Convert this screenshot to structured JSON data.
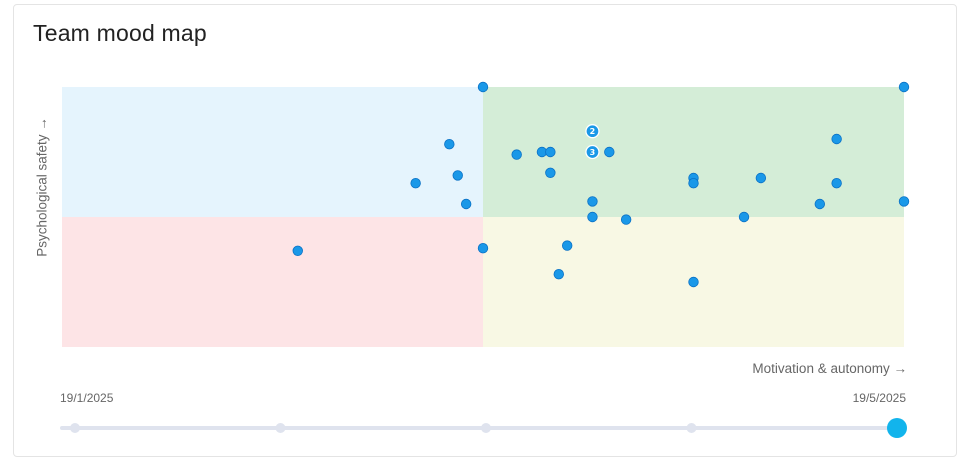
{
  "title": "Team mood map",
  "chart_data": {
    "type": "scatter",
    "xlabel": "Motivation & autonomy →",
    "ylabel": "Psychological safety →",
    "xlim": [
      0,
      1
    ],
    "ylim": [
      0,
      1
    ],
    "quadrant_split": [
      0.5,
      0.5
    ],
    "quadrant_colors": {
      "top_left": "#e5f4fd",
      "top_right": "#d4edd7",
      "bottom_left": "#fde4e6",
      "bottom_right": "#f8f8e4"
    },
    "point_color": "#1a98e8",
    "points": [
      {
        "x": 0.5,
        "y": 1.0
      },
      {
        "x": 1.0,
        "y": 1.0
      },
      {
        "x": 0.63,
        "y": 0.83,
        "count": 2
      },
      {
        "x": 0.63,
        "y": 0.75,
        "count": 3
      },
      {
        "x": 0.46,
        "y": 0.78
      },
      {
        "x": 0.54,
        "y": 0.74
      },
      {
        "x": 0.57,
        "y": 0.75
      },
      {
        "x": 0.58,
        "y": 0.75
      },
      {
        "x": 0.65,
        "y": 0.75
      },
      {
        "x": 0.92,
        "y": 0.8
      },
      {
        "x": 0.42,
        "y": 0.63
      },
      {
        "x": 0.47,
        "y": 0.66
      },
      {
        "x": 0.58,
        "y": 0.67
      },
      {
        "x": 0.75,
        "y": 0.65
      },
      {
        "x": 0.75,
        "y": 0.63
      },
      {
        "x": 0.83,
        "y": 0.65
      },
      {
        "x": 0.92,
        "y": 0.63
      },
      {
        "x": 0.48,
        "y": 0.55
      },
      {
        "x": 0.63,
        "y": 0.56
      },
      {
        "x": 0.63,
        "y": 0.5
      },
      {
        "x": 0.67,
        "y": 0.49
      },
      {
        "x": 0.81,
        "y": 0.5
      },
      {
        "x": 0.9,
        "y": 0.55
      },
      {
        "x": 1.0,
        "y": 0.56
      },
      {
        "x": 0.28,
        "y": 0.37
      },
      {
        "x": 0.5,
        "y": 0.38
      },
      {
        "x": 0.6,
        "y": 0.39
      },
      {
        "x": 0.59,
        "y": 0.28
      },
      {
        "x": 0.75,
        "y": 0.25
      }
    ]
  },
  "timeline": {
    "start_label": "19/1/2025",
    "end_label": "19/5/2025",
    "stops": 5,
    "selected_index": 4,
    "track_color": "#dfe3ee",
    "active_color": "#12b4ec"
  }
}
